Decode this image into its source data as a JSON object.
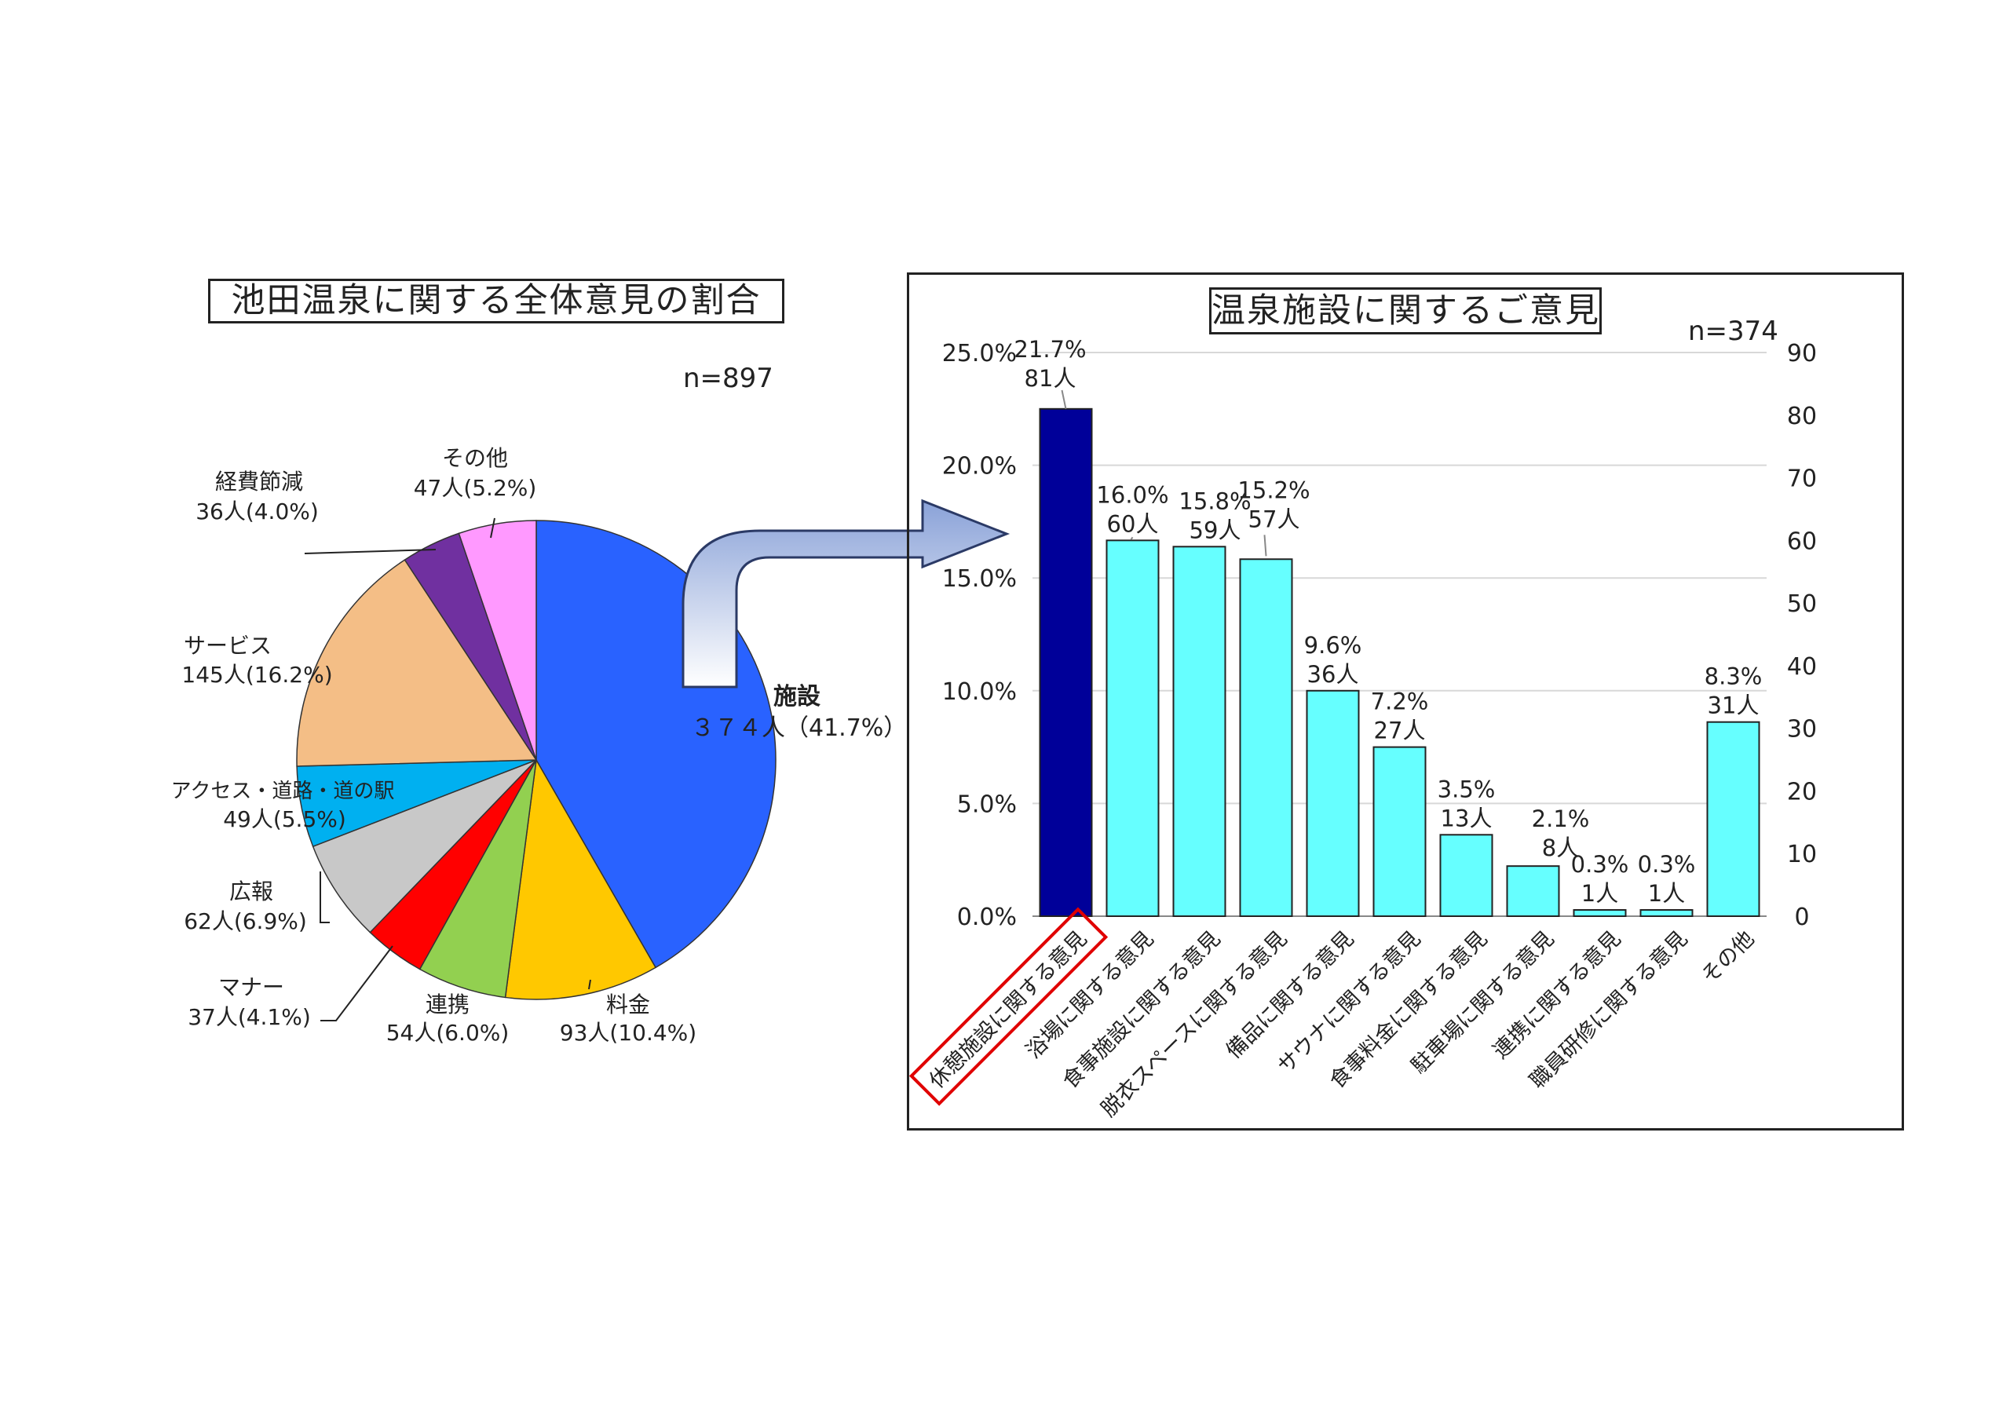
{
  "chart_data": [
    {
      "type": "pie",
      "title": "池田温泉に関する全体意見の割合",
      "n_label": "n=897",
      "slices": [
        {
          "name": "施設",
          "count": 374,
          "percent": 41.7,
          "label_line1": "施設",
          "label_line2": "３７４人（41.7%）",
          "color": "#2962FF"
        },
        {
          "name": "料金",
          "count": 93,
          "percent": 10.4,
          "label_line1": "料金",
          "label_line2": "93人(10.4%)",
          "color": "#FFC800"
        },
        {
          "name": "連携",
          "count": 54,
          "percent": 6.0,
          "label_line1": "連携",
          "label_line2": "54人(6.0%)",
          "color": "#92D050"
        },
        {
          "name": "マナー",
          "count": 37,
          "percent": 4.1,
          "label_line1": "マナー",
          "label_line2": "37人(4.1%)",
          "color": "#FF0000"
        },
        {
          "name": "広報",
          "count": 62,
          "percent": 6.9,
          "label_line1": "広報",
          "label_line2": "62人(6.9%)",
          "color": "#C8C8C8"
        },
        {
          "name": "アクセス・道路・道の駅",
          "count": 49,
          "percent": 5.5,
          "label_line1": "アクセス・道路・道の駅",
          "label_line2": "49人(5.5%)",
          "color": "#00B0F0"
        },
        {
          "name": "サービス",
          "count": 145,
          "percent": 16.2,
          "label_line1": "サービス",
          "label_line2": "145人(16.2%)",
          "color": "#F4BE86"
        },
        {
          "name": "経費節減",
          "count": 36,
          "percent": 4.0,
          "label_line1": "経費節減",
          "label_line2": "36人(4.0%)",
          "color": "#7030A0"
        },
        {
          "name": "その他",
          "count": 47,
          "percent": 5.2,
          "label_line1": "その他",
          "label_line2": "47人(5.2%)",
          "color": "#FF99FF"
        }
      ]
    },
    {
      "type": "bar",
      "title": "温泉施設に関するご意見",
      "n_label": "n=374",
      "categories": [
        "休憩施設に関する意見",
        "浴場に関する意見",
        "食事施設に関する意見",
        "脱衣スペースに関する意見",
        "備品に関する意見",
        "サウナに関する意見",
        "食事料金に関する意見",
        "駐車場に関する意見",
        "連携に関する意見",
        "職員研修に関する意見",
        "その他"
      ],
      "percent_labels": [
        "21.7%",
        "16.0%",
        "15.8%",
        "15.2%",
        "9.6%",
        "7.2%",
        "3.5%",
        "2.1%",
        "0.3%",
        "0.3%",
        "8.3%"
      ],
      "count_labels": [
        "81人",
        "60人",
        "59人",
        "57人",
        "36人",
        "27人",
        "13人",
        "8人",
        "1人",
        "1人",
        "31人"
      ],
      "values": [
        81,
        60,
        59,
        57,
        36,
        27,
        13,
        8,
        1,
        1,
        31
      ],
      "highlight_index": 0,
      "left_axis_ticks": [
        "0.0%",
        "5.0%",
        "10.0%",
        "15.0%",
        "20.0%",
        "25.0%"
      ],
      "right_axis_ticks": [
        "0",
        "10",
        "20",
        "30",
        "40",
        "50",
        "60",
        "70",
        "80",
        "90"
      ],
      "ylim_right": [
        0,
        90
      ],
      "ylim_left": [
        0,
        25
      ],
      "colors": {
        "highlight": "#000099",
        "normal": "#66FFFF",
        "highlight_box": "#E00000"
      }
    }
  ]
}
